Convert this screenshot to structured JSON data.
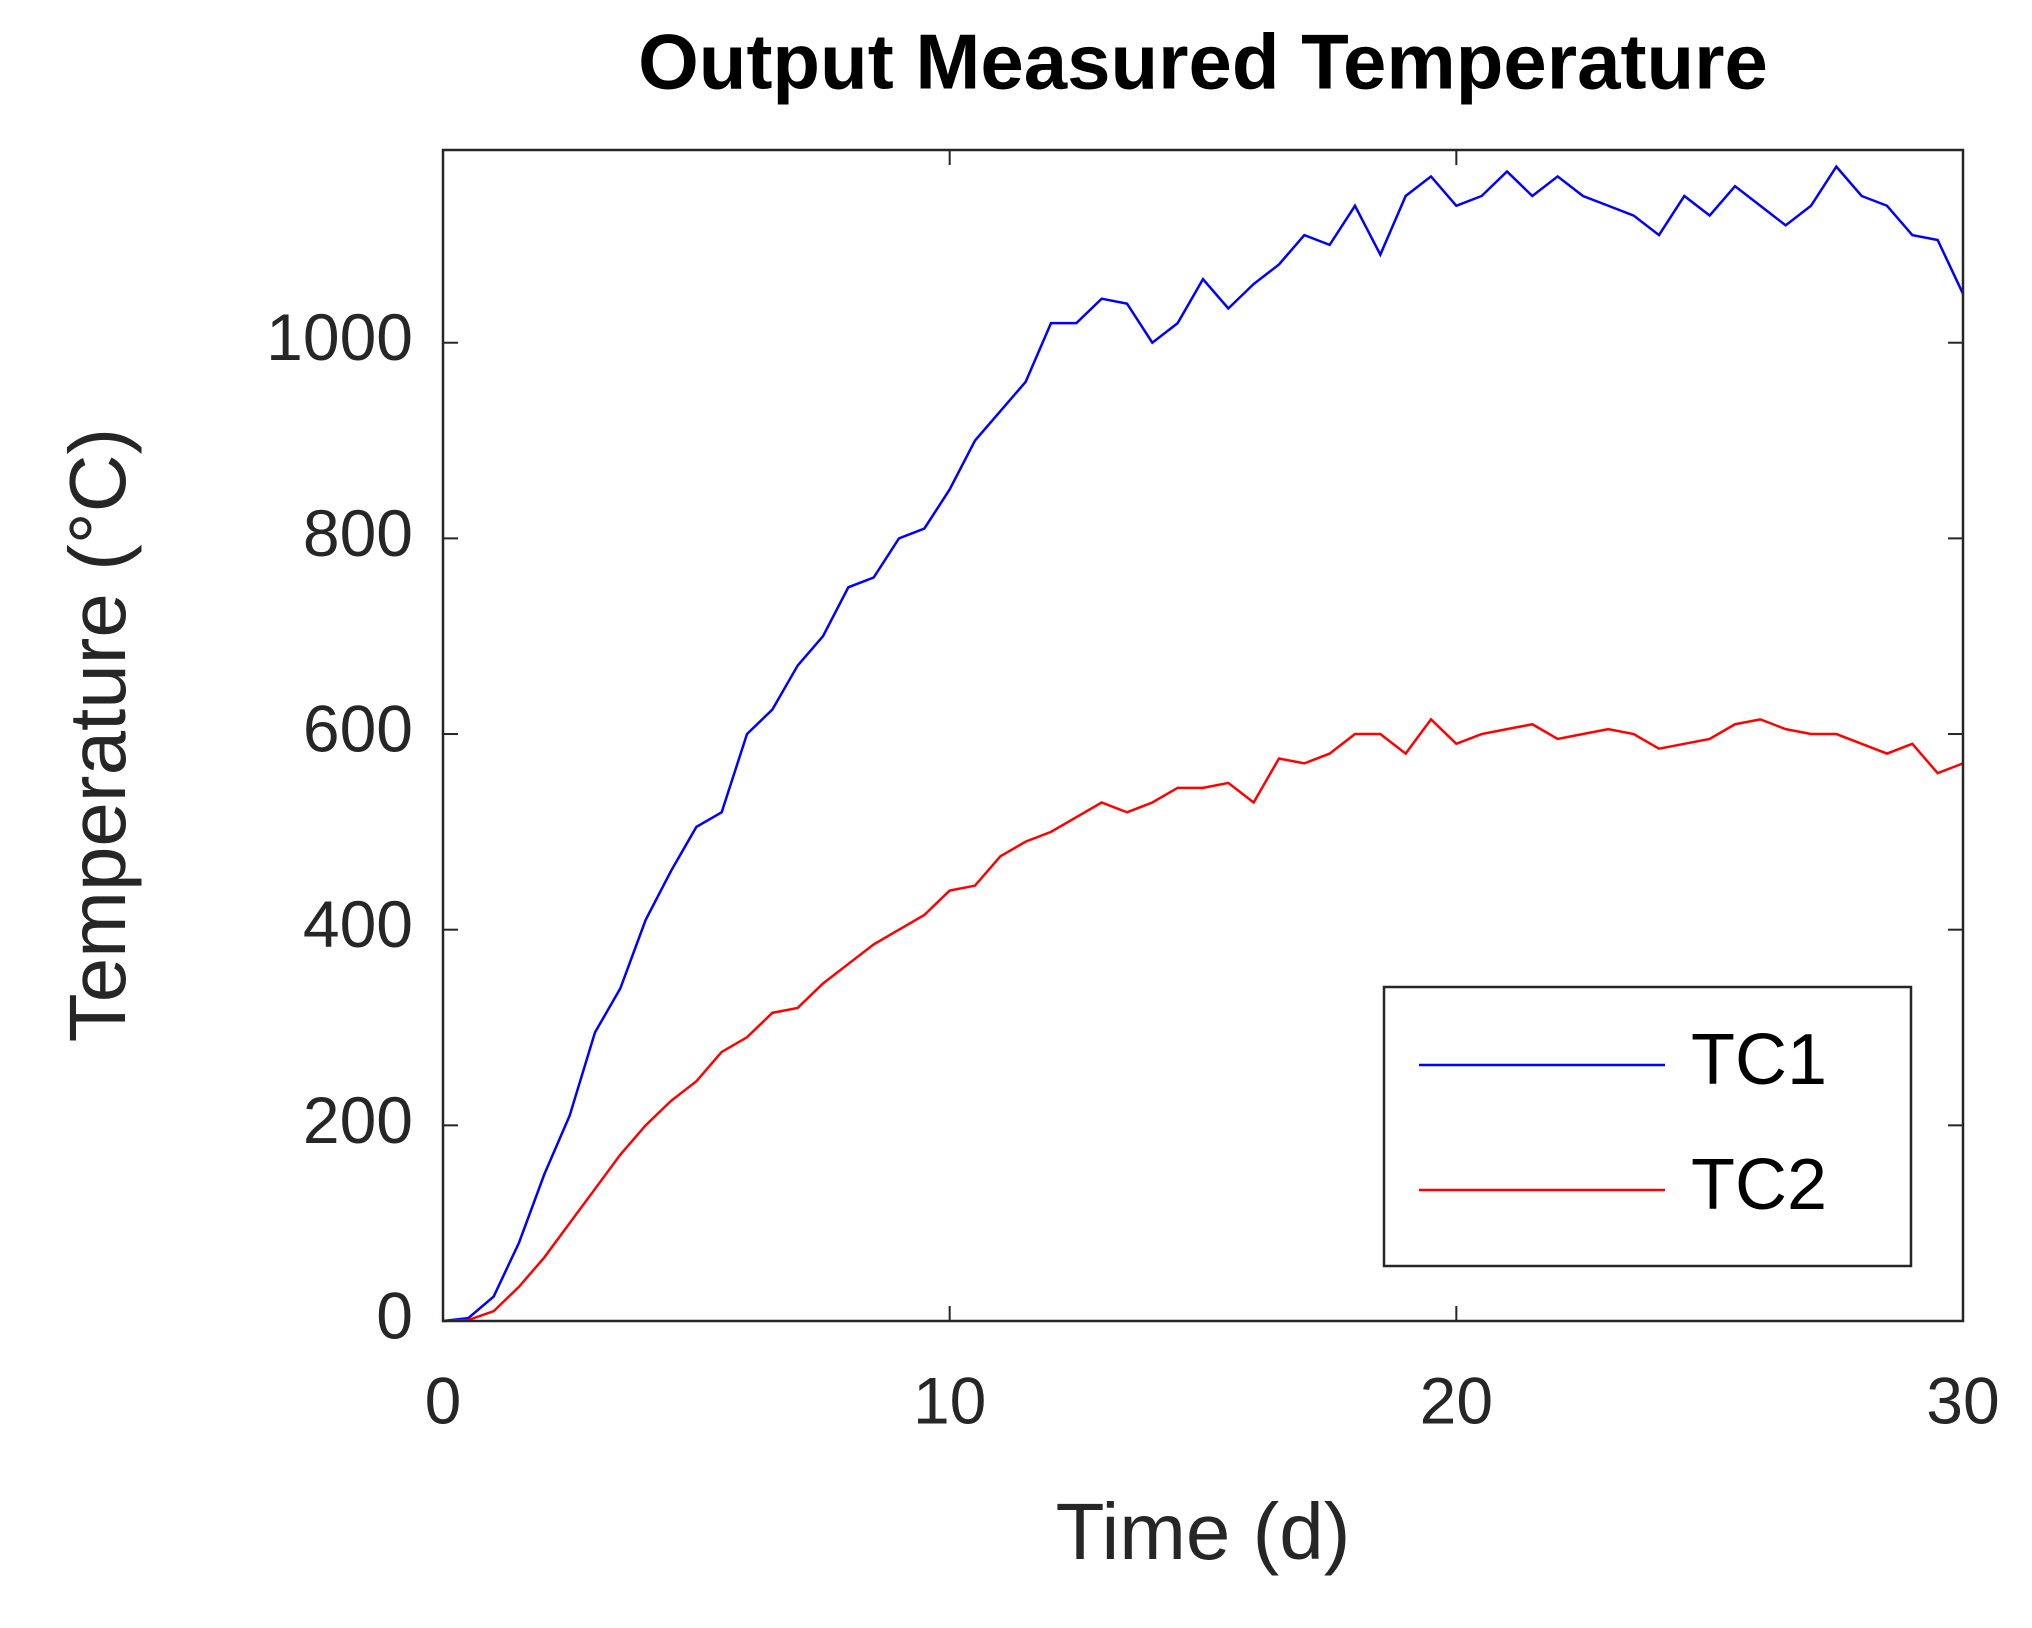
{
  "chart_data": {
    "type": "line",
    "title": "Output Measured Temperature",
    "xlabel": "Time (d)",
    "ylabel": "Temperature (°C)",
    "x": [
      0,
      0.5,
      1,
      1.5,
      2,
      2.5,
      3,
      3.5,
      4,
      4.5,
      5,
      5.5,
      6,
      6.5,
      7,
      7.5,
      8,
      8.5,
      9,
      9.5,
      10,
      10.5,
      11,
      11.5,
      12,
      12.5,
      13,
      13.5,
      14,
      14.5,
      15,
      15.5,
      16,
      16.5,
      17,
      17.5,
      18,
      18.5,
      19,
      19.5,
      20,
      20.5,
      21,
      21.5,
      22,
      22.5,
      23,
      23.5,
      24,
      24.5,
      25,
      25.5,
      26,
      26.5,
      27,
      27.5,
      28,
      28.5,
      29,
      29.5,
      30
    ],
    "series": [
      {
        "name": "TC1",
        "color": "#0000ff",
        "values": [
          0,
          3,
          25,
          80,
          150,
          210,
          295,
          340,
          410,
          460,
          505,
          520,
          600,
          625,
          670,
          700,
          750,
          760,
          800,
          810,
          850,
          900,
          930,
          960,
          1020,
          1020,
          1045,
          1040,
          1000,
          1020,
          1065,
          1035,
          1060,
          1080,
          1110,
          1100,
          1140,
          1090,
          1150,
          1170,
          1140,
          1150,
          1175,
          1150,
          1170,
          1150,
          1140,
          1130,
          1110,
          1150,
          1130,
          1160,
          1140,
          1120,
          1140,
          1180,
          1150,
          1140,
          1110,
          1105,
          1050
        ]
      },
      {
        "name": "TC2",
        "color": "#ff0000",
        "values": [
          0,
          1,
          10,
          35,
          65,
          100,
          135,
          170,
          200,
          225,
          245,
          275,
          290,
          315,
          320,
          345,
          365,
          385,
          400,
          415,
          440,
          445,
          475,
          490,
          500,
          515,
          530,
          520,
          530,
          545,
          545,
          550,
          530,
          575,
          570,
          580,
          600,
          600,
          580,
          615,
          590,
          600,
          605,
          610,
          595,
          600,
          605,
          600,
          585,
          590,
          595,
          610,
          615,
          605,
          600,
          600,
          590,
          580,
          590,
          560,
          570
        ]
      }
    ],
    "xlim": [
      0,
      30
    ],
    "xticks": [
      0,
      10,
      20,
      30
    ],
    "ylim": [
      0,
      1197
    ],
    "yticks": [
      0,
      200,
      400,
      600,
      800,
      1000
    ],
    "grid": false,
    "legend": "southeast"
  }
}
